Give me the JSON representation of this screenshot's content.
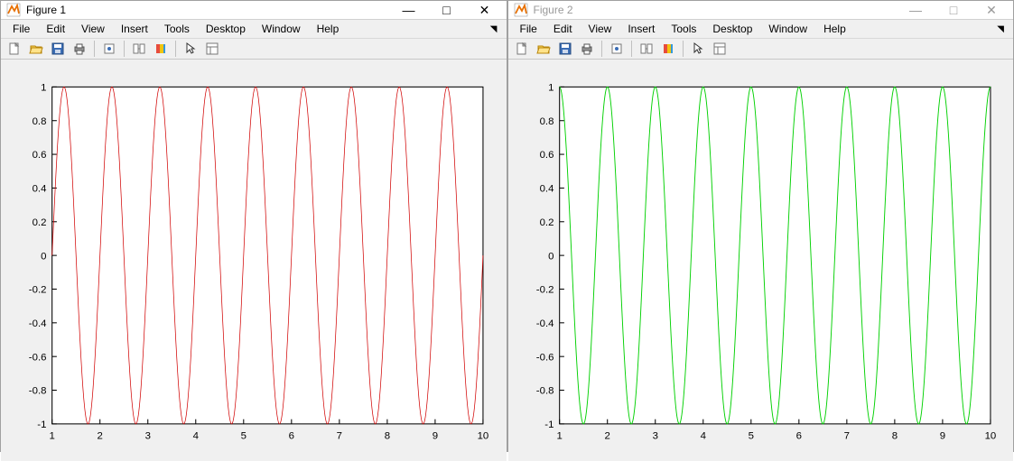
{
  "windows": [
    {
      "title": "Figure 1",
      "active": true,
      "chart": {
        "type": "line",
        "function": "sin",
        "phase": 0,
        "line_color": "#d10000",
        "line_width": 0.7,
        "xlim": [
          1,
          10
        ],
        "ylim": [
          -1,
          1
        ],
        "xticks": [
          1,
          2,
          3,
          4,
          5,
          6,
          7,
          8,
          9,
          10
        ],
        "yticks": [
          -1,
          -0.8,
          -0.6,
          -0.4,
          -0.2,
          0,
          0.2,
          0.4,
          0.6,
          0.8,
          1
        ],
        "periods_visible": 9,
        "background_color": "#ffffff",
        "axis_color": "#000000",
        "plot_bg": "#f0f0f0",
        "tick_fontsize": 11
      }
    },
    {
      "title": "Figure 2",
      "active": false,
      "chart": {
        "type": "line",
        "function": "sin",
        "phase": 0.5,
        "line_color": "#00d000",
        "line_width": 0.9,
        "xlim": [
          1,
          10
        ],
        "ylim": [
          -1,
          1
        ],
        "xticks": [
          1,
          2,
          3,
          4,
          5,
          6,
          7,
          8,
          9,
          10
        ],
        "yticks": [
          -1,
          -0.8,
          -0.6,
          -0.4,
          -0.2,
          0,
          0.2,
          0.4,
          0.6,
          0.8,
          1
        ],
        "periods_visible": 9,
        "background_color": "#ffffff",
        "axis_color": "#000000",
        "plot_bg": "#f0f0f0",
        "tick_fontsize": 11
      }
    }
  ],
  "menus": [
    "File",
    "Edit",
    "View",
    "Insert",
    "Tools",
    "Desktop",
    "Window",
    "Help"
  ],
  "toolbar_icons": [
    {
      "name": "new-icon",
      "group": 0
    },
    {
      "name": "open-icon",
      "group": 0
    },
    {
      "name": "save-icon",
      "group": 0
    },
    {
      "name": "print-icon",
      "group": 0
    },
    {
      "name": "sep"
    },
    {
      "name": "edit-plot-icon",
      "group": 1
    },
    {
      "name": "sep"
    },
    {
      "name": "link-icon",
      "group": 2
    },
    {
      "name": "insert-colorbar-icon",
      "group": 2
    },
    {
      "name": "sep"
    },
    {
      "name": "pointer-icon",
      "group": 3
    },
    {
      "name": "plottools-icon",
      "group": 3
    }
  ],
  "window_controls": {
    "minimize": "—",
    "maximize": "□",
    "close": "✕"
  }
}
